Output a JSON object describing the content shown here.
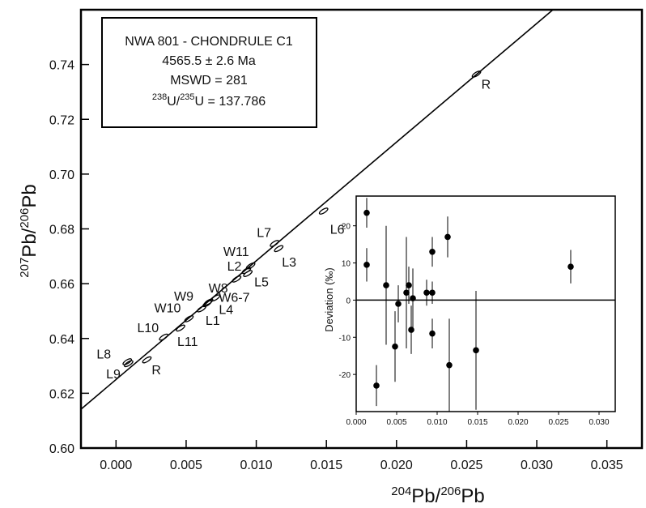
{
  "chart_data": [
    {
      "type": "scatter",
      "title": "",
      "xlabel": {
        "sup": "204",
        "base": "Pb/",
        "sup2": "206",
        "base2": "Pb"
      },
      "ylabel": {
        "sup": "207",
        "base": "Pb/",
        "sup2": "206",
        "base2": "Pb"
      },
      "xlim": [
        -0.0025,
        0.0375
      ],
      "ylim": [
        0.6,
        0.76
      ],
      "x_ticks": [
        0.0,
        0.005,
        0.01,
        0.015,
        0.02,
        0.025,
        0.03,
        0.035
      ],
      "x_tick_labels": [
        "0.000",
        "0.005",
        "0.010",
        "0.015",
        "0.020",
        "0.025",
        "0.030",
        "0.035"
      ],
      "y_ticks": [
        0.6,
        0.62,
        0.64,
        0.66,
        0.68,
        0.7,
        0.72,
        0.74
      ],
      "y_tick_labels": [
        "0.60",
        "0.62",
        "0.64",
        "0.66",
        "0.68",
        "0.70",
        "0.72",
        "0.74"
      ],
      "isochron": {
        "intercept": 0.625,
        "slope": 4.3333
      },
      "annotation_box": {
        "line1": "NWA 801 - CHONDRULE C1",
        "line2": "4565.5 ± 2.6 Ma",
        "line3": "MSWD = 281",
        "line4_sup_a": "238",
        "line4_mid": "U/",
        "line4_sup_b": "235",
        "line4_end": "U = 137.786"
      },
      "points": [
        {
          "label": "L8",
          "x": 0.0008,
          "y": 0.6315
        },
        {
          "label": "L9",
          "x": 0.0009,
          "y": 0.6308
        },
        {
          "label": "R",
          "x": 0.0022,
          "y": 0.6322
        },
        {
          "label": "L10",
          "x": 0.0034,
          "y": 0.6405
        },
        {
          "label": "L11",
          "x": 0.0046,
          "y": 0.6438
        },
        {
          "label": "W10",
          "x": 0.0052,
          "y": 0.6472
        },
        {
          "label": "W9",
          "x": 0.0061,
          "y": 0.6508
        },
        {
          "label": "L1",
          "x": 0.0065,
          "y": 0.6527
        },
        {
          "label": "W8",
          "x": 0.0066,
          "y": 0.6533
        },
        {
          "label": "L4",
          "x": 0.0071,
          "y": 0.6548
        },
        {
          "label": "W6-7",
          "x": 0.0086,
          "y": 0.6617
        },
        {
          "label": "L2",
          "x": 0.0093,
          "y": 0.6648
        },
        {
          "label": "L5",
          "x": 0.0094,
          "y": 0.6637
        },
        {
          "label": "W11",
          "x": 0.0096,
          "y": 0.6665
        },
        {
          "label": "L7",
          "x": 0.0113,
          "y": 0.6747
        },
        {
          "label": "L3",
          "x": 0.0116,
          "y": 0.6728
        },
        {
          "label": "L6",
          "x": 0.0148,
          "y": 0.6865
        },
        {
          "label": "R",
          "x": 0.0257,
          "y": 0.7365
        }
      ]
    },
    {
      "type": "scatter",
      "title": "",
      "xlabel": "",
      "ylabel": "Deviation (‰)",
      "xlim": [
        0.0,
        0.032
      ],
      "ylim": [
        -30,
        28
      ],
      "x_ticks": [
        0.0,
        0.005,
        0.01,
        0.015,
        0.02,
        0.025,
        0.03
      ],
      "x_tick_labels": [
        "0.000",
        "0.005",
        "0.010",
        "0.015",
        "0.020",
        "0.025",
        "0.030"
      ],
      "y_ticks": [
        -20,
        -10,
        0,
        10,
        20
      ],
      "y_tick_labels": [
        "-20",
        "-10",
        "0",
        "10",
        "20"
      ],
      "points": [
        {
          "x": 0.0013,
          "y": 23.5,
          "err": 4.0
        },
        {
          "x": 0.0013,
          "y": 9.5,
          "err": 4.5
        },
        {
          "x": 0.0025,
          "y": -23.0,
          "err": 5.5
        },
        {
          "x": 0.0037,
          "y": 4.0,
          "err": 16.0
        },
        {
          "x": 0.0048,
          "y": -12.5,
          "err": 9.5
        },
        {
          "x": 0.0052,
          "y": -1.0,
          "err": 5.0
        },
        {
          "x": 0.0062,
          "y": 2.0,
          "err": 15.0
        },
        {
          "x": 0.0065,
          "y": 4.0,
          "err": 5.0
        },
        {
          "x": 0.0068,
          "y": -8.0,
          "err": 6.5
        },
        {
          "x": 0.007,
          "y": 0.5,
          "err": 8.0
        },
        {
          "x": 0.0087,
          "y": 2.0,
          "err": 3.5
        },
        {
          "x": 0.0094,
          "y": 13.0,
          "err": 4.0
        },
        {
          "x": 0.0094,
          "y": 2.0,
          "err": 3.0
        },
        {
          "x": 0.0094,
          "y": -9.0,
          "err": 4.0
        },
        {
          "x": 0.0113,
          "y": 17.0,
          "err": 5.5
        },
        {
          "x": 0.0115,
          "y": -17.5,
          "err": 12.5
        },
        {
          "x": 0.0148,
          "y": -13.5,
          "err": 16.0
        },
        {
          "x": 0.0265,
          "y": 9.0,
          "err": 4.5
        }
      ]
    }
  ]
}
